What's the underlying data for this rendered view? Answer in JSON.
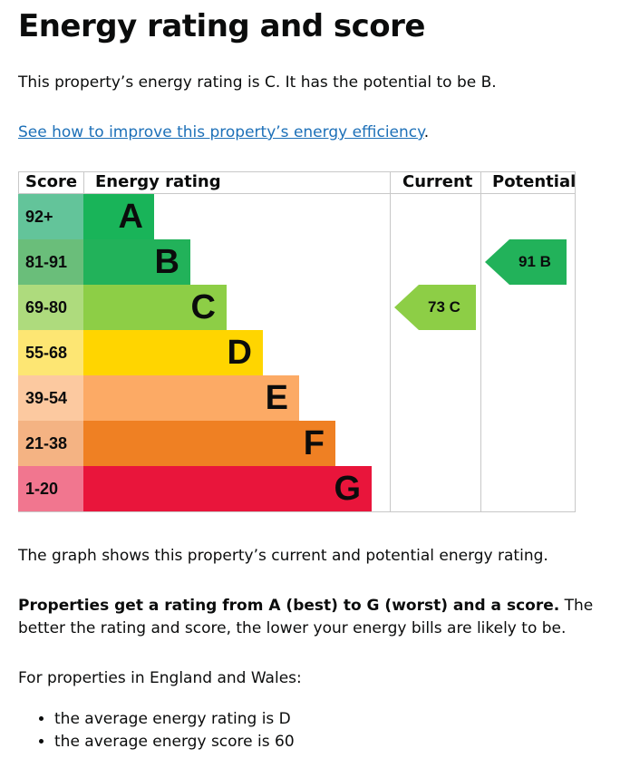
{
  "heading": "Energy rating and score",
  "intro": "This property’s energy rating is C. It has the potential to be B.",
  "improve_link": "See how to improve this property’s energy efficiency",
  "improve_link_suffix": ".",
  "chart_data": {
    "type": "table",
    "headers": {
      "score": "Score",
      "rating": "Energy rating",
      "current": "Current",
      "potential": "Potential"
    },
    "bands": [
      {
        "score": "92+",
        "letter": "A",
        "score_color": "#63c49a",
        "bar_color": "#19b459"
      },
      {
        "score": "81-91",
        "letter": "B",
        "score_color": "#6abe7a",
        "bar_color": "#22b25a"
      },
      {
        "score": "69-80",
        "letter": "C",
        "score_color": "#aedb7d",
        "bar_color": "#8dce46"
      },
      {
        "score": "55-68",
        "letter": "D",
        "score_color": "#fde673",
        "bar_color": "#ffd500"
      },
      {
        "score": "39-54",
        "letter": "E",
        "score_color": "#fcc9a0",
        "bar_color": "#fcaa65"
      },
      {
        "score": "21-38",
        "letter": "F",
        "score_color": "#f4b383",
        "bar_color": "#ef8023"
      },
      {
        "score": "1-20",
        "letter": "G",
        "score_color": "#f1768f",
        "bar_color": "#e9153b"
      }
    ],
    "current": {
      "value": 73,
      "letter": "C",
      "label": "73  C",
      "color": "#8dce46"
    },
    "potential": {
      "value": 91,
      "letter": "B",
      "label": "91  B",
      "color": "#22b25a"
    }
  },
  "graph_note": "The graph shows this property’s current and potential energy rating.",
  "ratings_bold": "Properties get a rating from A (best) to G (worst) and a score.",
  "ratings_rest": " The better the rating and score, the lower your energy bills are likely to be.",
  "average_intro": "For properties in England and Wales:",
  "averages": [
    "the average energy rating is D",
    "the average energy score is 60"
  ]
}
